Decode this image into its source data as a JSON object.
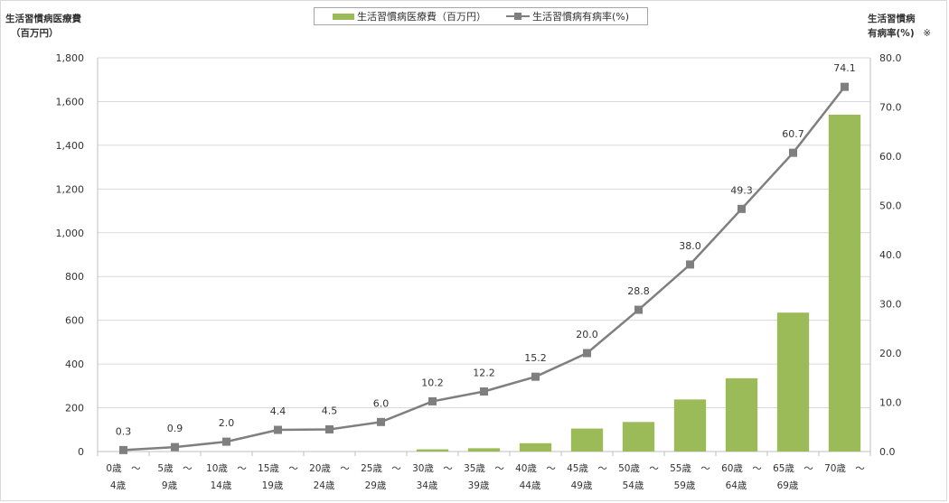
{
  "left_axis_title": [
    "生活習慣病医療費",
    "（百万円）"
  ],
  "right_axis_title": [
    "生活習慣病",
    "有病率(%)"
  ],
  "note_mark": "※",
  "legend": {
    "bar_label": "生活習慣病医療費（百万円）",
    "line_label": "生活習慣病有病率(%)"
  },
  "colors": {
    "bar": "#9bbb59",
    "line": "#7f7f7f",
    "grid": "#d9d9d9"
  },
  "chart_data": {
    "type": "bar",
    "categories": [
      [
        "0歳　～",
        "4歳"
      ],
      [
        "5歳　～",
        "9歳"
      ],
      [
        "10歳　～",
        "14歳"
      ],
      [
        "15歳　～",
        "19歳"
      ],
      [
        "20歳　～",
        "24歳"
      ],
      [
        "25歳　～",
        "29歳"
      ],
      [
        "30歳　～",
        "34歳"
      ],
      [
        "35歳　～",
        "39歳"
      ],
      [
        "40歳　～",
        "44歳"
      ],
      [
        "45歳　～",
        "49歳"
      ],
      [
        "50歳　～",
        "54歳"
      ],
      [
        "55歳　～",
        "59歳"
      ],
      [
        "60歳　～",
        "64歳"
      ],
      [
        "65歳　～",
        "69歳"
      ],
      [
        "70歳　～",
        ""
      ]
    ],
    "series": [
      {
        "name": "生活習慣病医療費（百万円）",
        "type": "bar",
        "axis": "left",
        "values": [
          0,
          0,
          0,
          0,
          0,
          0,
          10,
          15,
          38,
          105,
          135,
          238,
          335,
          635,
          1540
        ]
      },
      {
        "name": "生活習慣病有病率(%)",
        "type": "line",
        "axis": "right",
        "values": [
          0.3,
          0.9,
          2.0,
          4.4,
          4.5,
          6.0,
          10.2,
          12.2,
          15.2,
          20.0,
          28.8,
          38.0,
          49.3,
          60.7,
          74.1
        ],
        "labels": [
          "0.3",
          "0.9",
          "2.0",
          "4.4",
          "4.5",
          "6.0",
          "10.2",
          "12.2",
          "15.2",
          "20.0",
          "28.8",
          "38.0",
          "49.3",
          "60.7",
          "74.1"
        ]
      }
    ],
    "left_axis": {
      "range": [
        0,
        1800
      ],
      "ticks": [
        "0",
        "200",
        "400",
        "600",
        "800",
        "1,000",
        "1,200",
        "1,400",
        "1,600",
        "1,800"
      ]
    },
    "right_axis": {
      "range": [
        0,
        80
      ],
      "ticks": [
        "0.0",
        "10.0",
        "20.0",
        "30.0",
        "40.0",
        "50.0",
        "60.0",
        "70.0",
        "80.0"
      ]
    },
    "grid": true,
    "legend_position": "top"
  }
}
